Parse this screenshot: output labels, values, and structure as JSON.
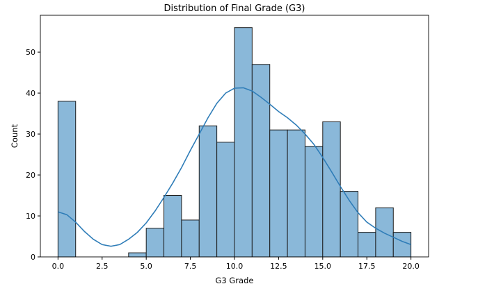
{
  "chart_data": {
    "type": "bar",
    "title": "Distribution of Final Grade (G3)",
    "xlabel": "G3 Grade",
    "ylabel": "Count",
    "bin_edges": [
      0,
      1,
      2,
      3,
      4,
      5,
      6,
      7,
      8,
      9,
      10,
      11,
      12,
      13,
      14,
      15,
      16,
      17,
      18,
      19,
      20
    ],
    "values": [
      38,
      0,
      0,
      0,
      1,
      7,
      15,
      9,
      32,
      28,
      56,
      47,
      31,
      31,
      27,
      33,
      16,
      6,
      12,
      6
    ],
    "kde": {
      "x": [
        0,
        0.5,
        1,
        1.5,
        2,
        2.5,
        3,
        3.5,
        4,
        4.5,
        5,
        5.5,
        6,
        6.5,
        7,
        7.5,
        8,
        8.5,
        9,
        9.5,
        10,
        10.5,
        11,
        11.5,
        12,
        12.5,
        13,
        13.5,
        14,
        14.5,
        15,
        15.5,
        16,
        16.5,
        17,
        17.5,
        18,
        18.5,
        19,
        19.5,
        20
      ],
      "y": [
        11,
        10.3,
        8.5,
        6.2,
        4.3,
        3.0,
        2.6,
        3.0,
        4.3,
        6.0,
        8.3,
        11.2,
        14.5,
        18,
        21.8,
        26,
        30,
        34,
        37.5,
        40,
        41.2,
        41.3,
        40.5,
        39,
        37.3,
        35.5,
        34,
        32.2,
        30,
        27.5,
        24.3,
        20.8,
        17.2,
        13.8,
        10.8,
        8.5,
        7,
        5.8,
        4.8,
        3.8,
        3
      ]
    },
    "xticks": [
      "0.0",
      "2.5",
      "5.0",
      "7.5",
      "10.0",
      "12.5",
      "15.0",
      "17.5",
      "20.0"
    ],
    "xtick_values": [
      0,
      2.5,
      5,
      7.5,
      10,
      12.5,
      15,
      17.5,
      20
    ],
    "yticks": [
      "0",
      "10",
      "20",
      "30",
      "40",
      "50"
    ],
    "ytick_values": [
      0,
      10,
      20,
      30,
      40,
      50
    ],
    "xlim": [
      -1,
      21
    ],
    "ylim": [
      0,
      59
    ],
    "grid": false,
    "colors": {
      "bar_fill": "#8ab8d9",
      "bar_edge": "#1a1a1a",
      "kde": "#2f7db8"
    }
  }
}
